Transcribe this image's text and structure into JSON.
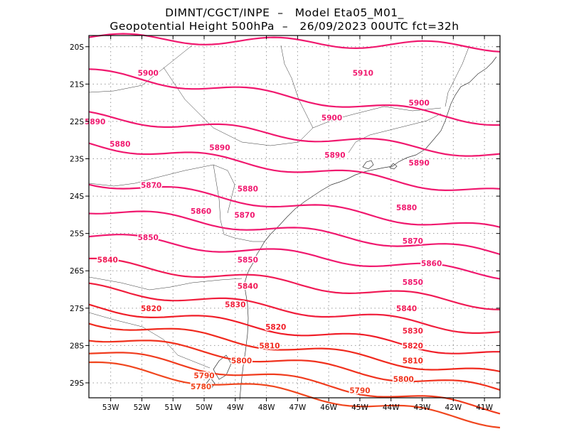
{
  "title": {
    "line1": "DIMNT/CGCT/INPE  –   Model Eta05_M01_",
    "line2": "Geopotential Height 500hPa  –   26/09/2023 00UTC fct=32h"
  },
  "axes": {
    "lon_ticks": [
      "53W",
      "52W",
      "51W",
      "50W",
      "49W",
      "48W",
      "47W",
      "46W",
      "45W",
      "44W",
      "43W",
      "42W",
      "41W"
    ],
    "lon_values": [
      -53,
      -52,
      -51,
      -50,
      -49,
      -48,
      -47,
      -46,
      -45,
      -44,
      -43,
      -42,
      -41
    ],
    "lat_ticks": [
      "20S",
      "21S",
      "22S",
      "23S",
      "24S",
      "25S",
      "26S",
      "27S",
      "28S",
      "29S"
    ],
    "lat_values": [
      -20,
      -21,
      -22,
      -23,
      -24,
      -25,
      -26,
      -27,
      -28,
      -29
    ],
    "lon_range": [
      -53.7,
      -40.5
    ],
    "lat_range": [
      -29.4,
      -19.7
    ],
    "grid": "dotted"
  },
  "contours": [
    {
      "value": 5910,
      "color": "#f0186e"
    },
    {
      "value": 5900,
      "color": "#f0186e"
    },
    {
      "value": 5890,
      "color": "#f0186e"
    },
    {
      "value": 5880,
      "color": "#f0186e"
    },
    {
      "value": 5870,
      "color": "#f0186e"
    },
    {
      "value": 5860,
      "color": "#f0186e"
    },
    {
      "value": 5850,
      "color": "#f0186e"
    },
    {
      "value": 5840,
      "color": "#f01a55"
    },
    {
      "value": 5830,
      "color": "#f01e3c"
    },
    {
      "value": 5820,
      "color": "#f01e28"
    },
    {
      "value": 5810,
      "color": "#f02a1e"
    },
    {
      "value": 5800,
      "color": "#f0321e"
    },
    {
      "value": 5790,
      "color": "#f03c1e"
    },
    {
      "value": 5780,
      "color": "#f0461e"
    }
  ],
  "contour_labels": [
    {
      "text": "5910",
      "lon": -44.9,
      "lat": -20.7
    },
    {
      "text": "5900",
      "lon": -51.8,
      "lat": -20.7
    },
    {
      "text": "5900",
      "lon": -45.9,
      "lat": -21.9
    },
    {
      "text": "5900",
      "lon": -43.1,
      "lat": -21.5
    },
    {
      "text": "5890",
      "lon": -53.5,
      "lat": -22.0
    },
    {
      "text": "5890",
      "lon": -49.5,
      "lat": -22.7
    },
    {
      "text": "5890",
      "lon": -45.8,
      "lat": -22.9
    },
    {
      "text": "5890",
      "lon": -43.1,
      "lat": -23.1
    },
    {
      "text": "5880",
      "lon": -52.7,
      "lat": -22.6
    },
    {
      "text": "5880",
      "lon": -48.6,
      "lat": -23.8
    },
    {
      "text": "5880",
      "lon": -43.5,
      "lat": -24.3
    },
    {
      "text": "5870",
      "lon": -51.7,
      "lat": -23.7
    },
    {
      "text": "5870",
      "lon": -48.7,
      "lat": -24.5
    },
    {
      "text": "5870",
      "lon": -43.3,
      "lat": -25.2
    },
    {
      "text": "5860",
      "lon": -50.1,
      "lat": -24.4
    },
    {
      "text": "5860",
      "lon": -42.7,
      "lat": -25.8
    },
    {
      "text": "5850",
      "lon": -51.8,
      "lat": -25.1
    },
    {
      "text": "5850",
      "lon": -48.6,
      "lat": -25.7
    },
    {
      "text": "5850",
      "lon": -43.3,
      "lat": -26.3
    },
    {
      "text": "5840",
      "lon": -53.1,
      "lat": -25.7
    },
    {
      "text": "5840",
      "lon": -48.6,
      "lat": -26.4
    },
    {
      "text": "5840",
      "lon": -43.5,
      "lat": -27.0
    },
    {
      "text": "5830",
      "lon": -49.0,
      "lat": -26.9
    },
    {
      "text": "5830",
      "lon": -43.3,
      "lat": -27.6
    },
    {
      "text": "5820",
      "lon": -51.7,
      "lat": -27.0
    },
    {
      "text": "5820",
      "lon": -47.7,
      "lat": -27.5
    },
    {
      "text": "5820",
      "lon": -43.3,
      "lat": -28.0
    },
    {
      "text": "5810",
      "lon": -47.9,
      "lat": -28.0
    },
    {
      "text": "5810",
      "lon": -43.3,
      "lat": -28.4
    },
    {
      "text": "5800",
      "lon": -48.8,
      "lat": -28.4
    },
    {
      "text": "5800",
      "lon": -43.6,
      "lat": -28.9
    },
    {
      "text": "5790",
      "lon": -50.0,
      "lat": -28.8
    },
    {
      "text": "5790",
      "lon": -45.0,
      "lat": -29.2
    },
    {
      "text": "5780",
      "lon": -50.1,
      "lat": -29.1
    }
  ]
}
